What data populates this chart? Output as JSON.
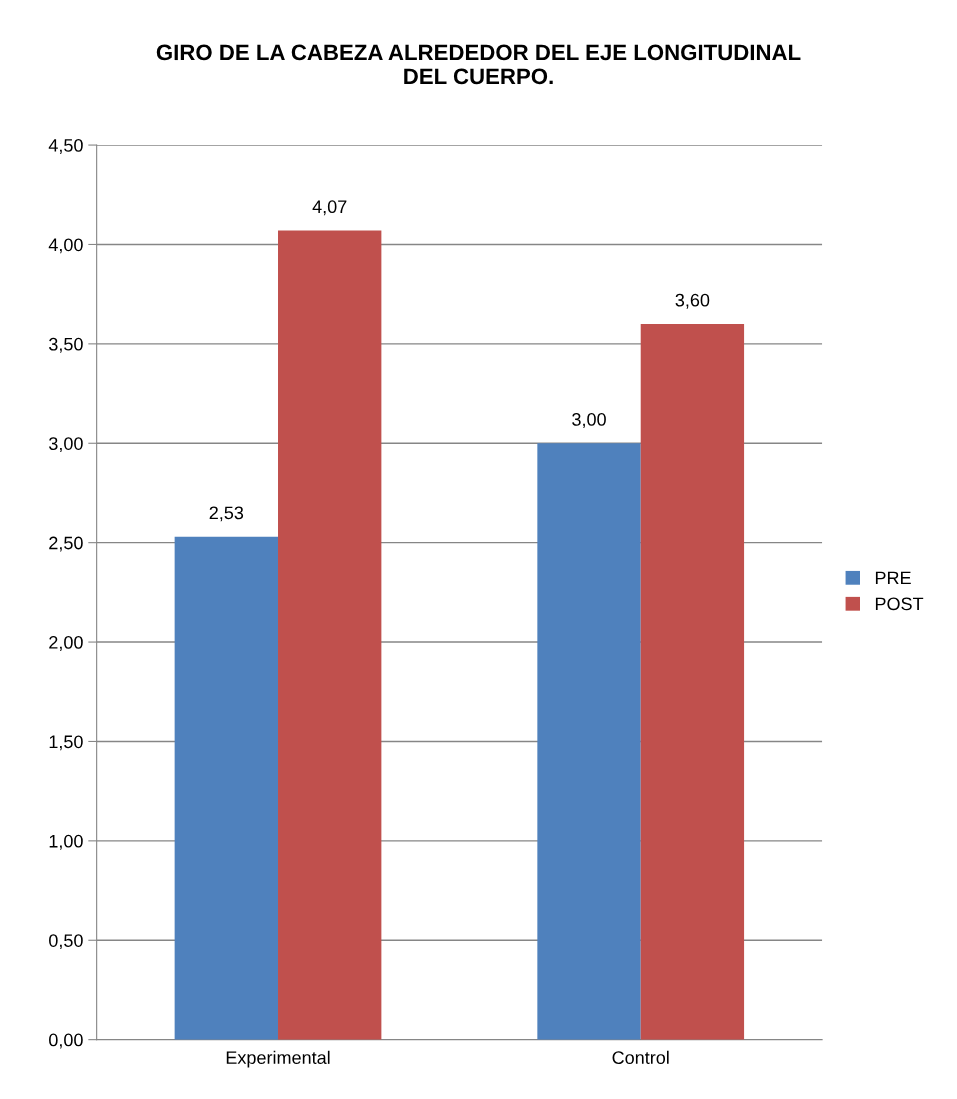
{
  "chart_data": {
    "type": "bar",
    "title": "GIRO DE LA CABEZA ALREDEDOR DEL EJE LONGITUDINAL\nDEL CUERPO.",
    "categories": [
      "Experimental",
      "Control"
    ],
    "series": [
      {
        "name": "PRE",
        "color": "#4f81bd",
        "values": [
          2.53,
          3.0
        ],
        "value_labels": [
          "2,53",
          "3,00"
        ]
      },
      {
        "name": "POST",
        "color": "#c0504d",
        "values": [
          4.07,
          3.6
        ],
        "value_labels": [
          "4,07",
          "3,60"
        ]
      }
    ],
    "ylim": [
      0,
      4.5
    ],
    "yticks": [
      {
        "value": 0,
        "label": "0,00"
      },
      {
        "value": 0.5,
        "label": "0,50"
      },
      {
        "value": 1,
        "label": "1,00"
      },
      {
        "value": 1.5,
        "label": "1,50"
      },
      {
        "value": 2,
        "label": "2,00"
      },
      {
        "value": 2.5,
        "label": "2,50"
      },
      {
        "value": 3,
        "label": "3,00"
      },
      {
        "value": 3.5,
        "label": "3,50"
      },
      {
        "value": 4,
        "label": "4,00"
      },
      {
        "value": 4.5,
        "label": "4,50"
      }
    ],
    "grid": "y",
    "legend": "right"
  }
}
